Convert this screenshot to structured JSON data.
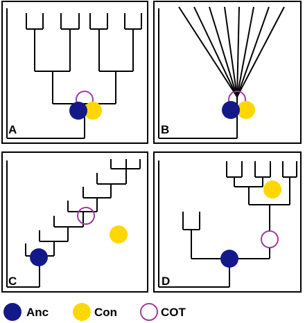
{
  "panels": [
    {
      "id": "A",
      "label": "A"
    },
    {
      "id": "B",
      "label": "B"
    },
    {
      "id": "C",
      "label": "C"
    },
    {
      "id": "D",
      "label": "D"
    }
  ],
  "legend": {
    "anc_label": "Anc",
    "con_label": "Con",
    "cot_label": "COT"
  },
  "colors": {
    "anc": "#14198a",
    "con": "#ffd700",
    "cot": "#9b3d9b",
    "line": "#000000"
  }
}
